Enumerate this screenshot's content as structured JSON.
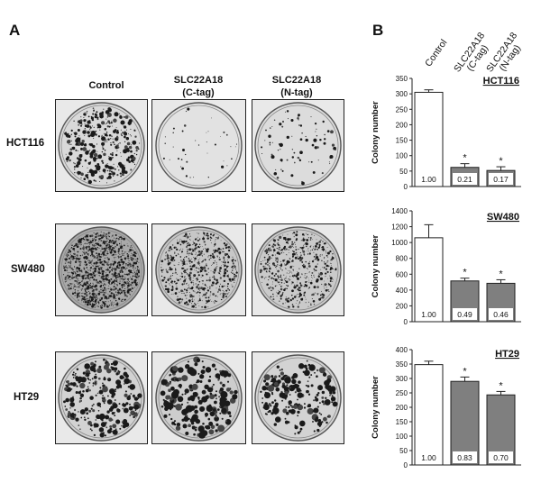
{
  "panel_a": {
    "letter": "A",
    "columns": [
      "Control",
      "SLC22A18\n(C-tag)",
      "SLC22A18\n(N-tag)"
    ],
    "rows": [
      "HCT116",
      "SW480",
      "HT29"
    ]
  },
  "panel_b": {
    "letter": "B",
    "column_headers": [
      "Control",
      "SLC22A18\n(C-tag)",
      "SLC22A18\n(N-tag)"
    ]
  },
  "chart_data": [
    {
      "type": "bar",
      "title": "HCT116",
      "ylabel": "Colony number",
      "ylim": [
        0,
        350
      ],
      "yticks": [
        0,
        50,
        100,
        150,
        200,
        250,
        300,
        350
      ],
      "categories": [
        "Control",
        "SLC22A18 (C-tag)",
        "SLC22A18 (N-tag)"
      ],
      "values": [
        305,
        62,
        52
      ],
      "errors": [
        8,
        12,
        12
      ],
      "ratio_labels": [
        "1.00",
        "0.21",
        "0.17"
      ],
      "significance": [
        "",
        "*",
        "*"
      ],
      "colors": [
        "#ffffff",
        "#7f7f7f",
        "#7f7f7f"
      ]
    },
    {
      "type": "bar",
      "title": "SW480",
      "ylabel": "Colony number",
      "ylim": [
        0,
        1400
      ],
      "yticks": [
        0,
        200,
        400,
        600,
        800,
        1000,
        1200,
        1400
      ],
      "categories": [
        "Control",
        "SLC22A18 (C-tag)",
        "SLC22A18 (N-tag)"
      ],
      "values": [
        1060,
        515,
        485
      ],
      "errors": [
        165,
        35,
        45
      ],
      "ratio_labels": [
        "1.00",
        "0.49",
        "0.46"
      ],
      "significance": [
        "",
        "*",
        "*"
      ],
      "colors": [
        "#ffffff",
        "#7f7f7f",
        "#7f7f7f"
      ]
    },
    {
      "type": "bar",
      "title": "HT29",
      "ylabel": "Colony number",
      "ylim": [
        0,
        400
      ],
      "yticks": [
        0,
        50,
        100,
        150,
        200,
        250,
        300,
        350,
        400
      ],
      "categories": [
        "Control",
        "SLC22A18 (C-tag)",
        "SLC22A18 (N-tag)"
      ],
      "values": [
        348,
        290,
        243
      ],
      "errors": [
        12,
        15,
        12
      ],
      "ratio_labels": [
        "1.00",
        "0.83",
        "0.70"
      ],
      "significance": [
        "",
        "*",
        "*"
      ],
      "colors": [
        "#ffffff",
        "#7f7f7f",
        "#7f7f7f"
      ]
    }
  ]
}
